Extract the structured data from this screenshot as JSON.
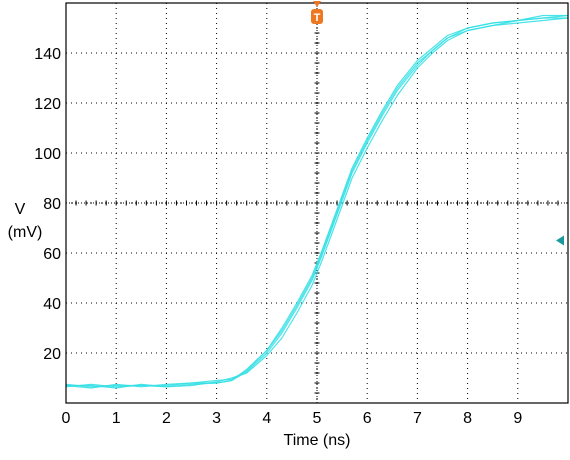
{
  "chart_data": {
    "type": "line",
    "xlabel": "Time (ns)",
    "ylabel_line1": "V",
    "ylabel_line2": "(mV)",
    "xlim": [
      0,
      10
    ],
    "ylim": [
      0,
      160
    ],
    "x_ticks": [
      0,
      1,
      2,
      3,
      4,
      5,
      6,
      7,
      8,
      9
    ],
    "y_ticks": [
      20,
      40,
      60,
      80,
      100,
      120,
      140
    ],
    "grid": true,
    "trace_color": "#36e0e6",
    "trigger_marker": {
      "label": "T",
      "x": 5,
      "color": "#ee7722"
    },
    "level_marker": {
      "y": 65,
      "color": "#1a9aa0"
    },
    "series": [
      {
        "x": [
          0,
          0.5,
          1,
          1.5,
          2,
          2.5,
          3,
          3.3,
          3.6,
          4,
          4.3,
          4.6,
          4.9,
          5.1,
          5.3,
          5.5,
          5.7,
          6,
          6.3,
          6.6,
          7,
          7.3,
          7.6,
          8,
          8.5,
          9,
          9.5,
          10
        ],
        "values": [
          7,
          7,
          6,
          7.5,
          6.5,
          7.5,
          8,
          9,
          12.5,
          20,
          28,
          38,
          49,
          59,
          70,
          81,
          92,
          104,
          115,
          125,
          135,
          141,
          146,
          150,
          152,
          153,
          154,
          154
        ]
      },
      {
        "x": [
          0,
          0.5,
          1,
          1.5,
          2,
          2.5,
          3,
          3.3,
          3.6,
          4,
          4.3,
          4.6,
          4.9,
          5.1,
          5.3,
          5.5,
          5.7,
          6,
          6.3,
          6.6,
          7,
          7.3,
          7.6,
          8,
          8.5,
          9,
          9.5,
          10
        ],
        "values": [
          6.5,
          7.5,
          6.5,
          7,
          7,
          8,
          9,
          9.5,
          13,
          21,
          30,
          40,
          51,
          61,
          72,
          83,
          94,
          106,
          117,
          127,
          137,
          142,
          147,
          150,
          152,
          153,
          155,
          155
        ]
      },
      {
        "x": [
          0,
          0.5,
          1,
          1.5,
          2,
          2.5,
          3,
          3.3,
          3.6,
          4,
          4.3,
          4.6,
          4.9,
          5.1,
          5.3,
          5.5,
          5.7,
          6,
          6.3,
          6.6,
          7,
          7.3,
          7.6,
          8,
          8.5,
          9,
          9.5,
          10
        ],
        "values": [
          7.5,
          6.5,
          7,
          7,
          6.5,
          7,
          8.5,
          10,
          12,
          19,
          26,
          36,
          47,
          57,
          68,
          79,
          90,
          102,
          113,
          123,
          134,
          140,
          145,
          149,
          151,
          152,
          153,
          154
        ]
      },
      {
        "x": [
          0,
          0.5,
          1,
          1.5,
          2,
          2.5,
          3,
          3.3,
          3.6,
          4,
          4.3,
          4.6,
          4.9,
          5.1,
          5.3,
          5.5,
          5.7,
          6,
          6.3,
          6.6,
          7,
          7.3,
          7.6,
          8,
          8.5,
          9,
          9.5,
          10
        ],
        "values": [
          7,
          6,
          7.5,
          6.5,
          7.5,
          8,
          8,
          9,
          13.5,
          21,
          29,
          39,
          50,
          60,
          71,
          82,
          93,
          105,
          116,
          126,
          136,
          141,
          146,
          149,
          151,
          153,
          154,
          155
        ]
      }
    ]
  }
}
